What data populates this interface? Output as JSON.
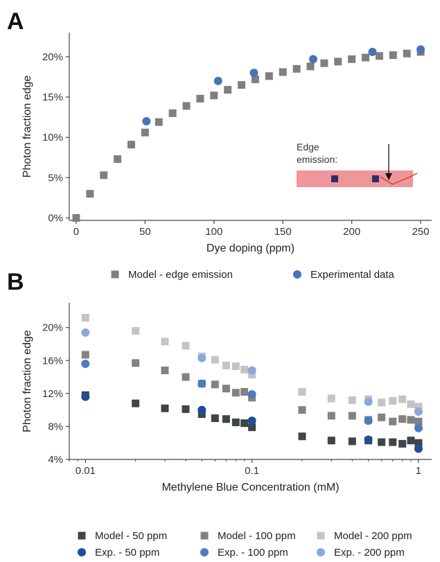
{
  "panel_a": {
    "letter": "A",
    "inset": {
      "line1": "Edge",
      "line2": "emission:"
    }
  },
  "panel_b": {
    "letter": "B"
  },
  "colors": {
    "model_a": "#7f7f7f",
    "exp_a": "#4a72b5",
    "model_50": "#3f4548",
    "model_100": "#828282",
    "model_200": "#c4c4c4",
    "exp_50": "#1f4e98",
    "exp_100": "#4f7bc3",
    "exp_200": "#89a8dc",
    "inset_band": "#f0959a",
    "inset_square": "#2b2d6e"
  },
  "chart_data": [
    {
      "type": "scatter",
      "xlabel": "Dye doping (ppm)",
      "ylabel": "Photon fraction edge",
      "xlim": [
        -5,
        258
      ],
      "ylim": [
        -0.3,
        23
      ],
      "xticks": [
        0,
        50,
        100,
        150,
        200,
        250
      ],
      "xtick_labels": [
        "0",
        "50",
        "100",
        "150",
        "200",
        "250"
      ],
      "yticks": [
        0,
        5,
        10,
        15,
        20
      ],
      "ytick_labels": [
        "0%",
        "5%",
        "10%",
        "15%",
        "20%"
      ],
      "legend_position": "bottom",
      "series": [
        {
          "name": "Model - edge emission",
          "marker": "square",
          "x": [
            0,
            10,
            20,
            30,
            40,
            50,
            60,
            70,
            80,
            90,
            100,
            110,
            120,
            130,
            140,
            150,
            160,
            170,
            180,
            190,
            200,
            210,
            220,
            230,
            240,
            250
          ],
          "y": [
            0.0,
            3.0,
            5.3,
            7.3,
            9.1,
            10.6,
            11.9,
            13.0,
            13.9,
            14.8,
            15.2,
            15.9,
            16.5,
            17.2,
            17.6,
            18.1,
            18.5,
            18.8,
            19.2,
            19.4,
            19.7,
            19.9,
            20.1,
            20.2,
            20.4,
            20.6
          ]
        },
        {
          "name": "Experimental data",
          "marker": "circle",
          "x": [
            51,
            103,
            129,
            172,
            215,
            250
          ],
          "y": [
            12.0,
            17.0,
            18.0,
            19.7,
            20.6,
            20.9
          ]
        }
      ]
    },
    {
      "type": "scatter",
      "xscale": "log",
      "xlabel": "Methylene Blue Concentration (mM)",
      "ylabel": "Photon fraction edge",
      "xlim": [
        0.008,
        1.2
      ],
      "ylim": [
        4,
        23
      ],
      "xticks": [
        0.01,
        0.1,
        1
      ],
      "xtick_labels": [
        "0.01",
        "0.1",
        "1"
      ],
      "yticks": [
        4,
        8,
        12,
        16,
        20
      ],
      "ytick_labels": [
        "4%",
        "8%",
        "12%",
        "16%",
        "20%"
      ],
      "legend_position": "bottom",
      "series": [
        {
          "name": "Model - 50 ppm",
          "marker": "square",
          "x": [
            0.01,
            0.02,
            0.03,
            0.04,
            0.05,
            0.06,
            0.07,
            0.08,
            0.09,
            0.1,
            0.2,
            0.3,
            0.4,
            0.5,
            0.6,
            0.7,
            0.8,
            0.9,
            1.0
          ],
          "y": [
            11.8,
            10.8,
            10.2,
            10.1,
            9.5,
            9.0,
            8.9,
            8.5,
            8.4,
            7.9,
            6.8,
            6.3,
            6.2,
            6.3,
            6.1,
            6.1,
            5.9,
            6.3,
            6.0
          ]
        },
        {
          "name": "Model - 100 ppm",
          "marker": "square",
          "x": [
            0.01,
            0.02,
            0.03,
            0.04,
            0.05,
            0.06,
            0.07,
            0.08,
            0.09,
            0.1,
            0.2,
            0.3,
            0.4,
            0.5,
            0.6,
            0.7,
            0.8,
            0.9,
            1.0
          ],
          "y": [
            16.7,
            15.7,
            14.8,
            14.0,
            13.2,
            13.1,
            12.6,
            12.1,
            12.2,
            11.5,
            10.0,
            9.3,
            9.3,
            8.8,
            9.1,
            8.6,
            8.9,
            8.8,
            8.6
          ]
        },
        {
          "name": "Model - 200 ppm",
          "marker": "square",
          "x": [
            0.01,
            0.02,
            0.03,
            0.04,
            0.05,
            0.06,
            0.07,
            0.08,
            0.09,
            0.1,
            0.2,
            0.3,
            0.4,
            0.5,
            0.6,
            0.7,
            0.8,
            0.9,
            1.0
          ],
          "y": [
            21.2,
            19.6,
            18.3,
            17.8,
            16.5,
            16.1,
            15.4,
            15.3,
            14.9,
            14.3,
            12.2,
            11.4,
            11.2,
            11.3,
            10.9,
            11.1,
            11.3,
            10.7,
            10.4
          ]
        },
        {
          "name": "Exp. - 50 ppm",
          "marker": "circle",
          "x": [
            0.01,
            0.05,
            0.1,
            0.5,
            1.0
          ],
          "y": [
            11.6,
            10.0,
            8.7,
            6.4,
            5.3
          ]
        },
        {
          "name": "Exp. - 100 ppm",
          "marker": "circle",
          "x": [
            0.01,
            0.05,
            0.1,
            0.5,
            1.0
          ],
          "y": [
            15.6,
            13.2,
            11.9,
            8.7,
            7.8
          ]
        },
        {
          "name": "Exp. - 200 ppm",
          "marker": "circle",
          "x": [
            0.01,
            0.05,
            0.1,
            0.5,
            1.0
          ],
          "y": [
            19.4,
            16.3,
            14.8,
            11.0,
            9.8
          ]
        }
      ]
    }
  ]
}
